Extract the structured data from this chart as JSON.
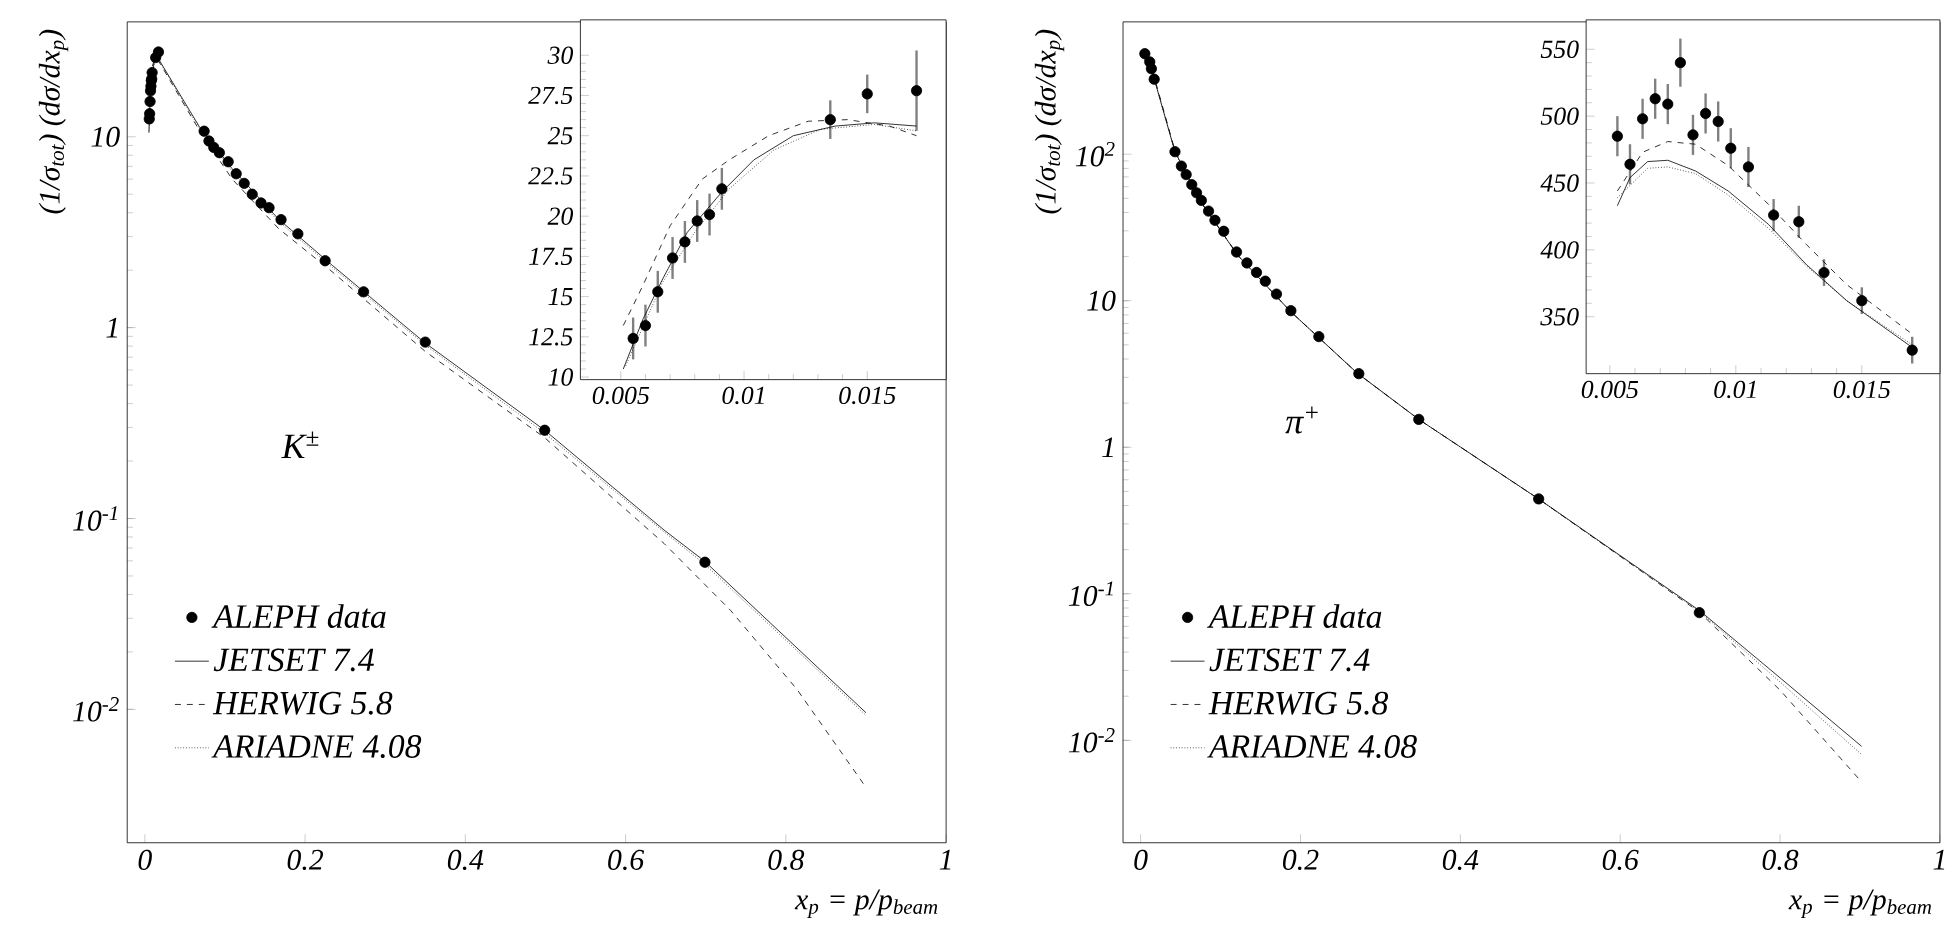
{
  "chart_data": [
    {
      "type": "line",
      "log": true,
      "legend": "bottom left",
      "xlabel": "x$_{p}$ = p/p$_{beam}$",
      "ylabel": "(1/σ$_{tot}$) (dσ/dx$_{p}$)",
      "annotations": [
        "K$^{±}$"
      ],
      "xlim": [
        -0.022,
        1.0
      ],
      "ylim": [
        0.002,
        40
      ],
      "xticks": [
        0,
        0.2,
        0.4,
        0.6,
        0.8,
        1
      ],
      "yticks": [
        {
          "value": 0.01,
          "label": "10$^{-2}$"
        },
        {
          "value": 0.1,
          "label": "10$^{-1}$"
        },
        1,
        10
      ],
      "series": [
        {
          "name": "ALEPH data",
          "type": "scatter",
          "marker": "circle",
          "color": "#000000",
          "x": [
            0.0055,
            0.006,
            0.0065,
            0.0071,
            0.0076,
            0.0081,
            0.0086,
            0.0091,
            0.0135,
            0.015,
            0.017,
            0.074,
            0.08,
            0.086,
            0.093,
            0.104,
            0.114,
            0.124,
            0.134,
            0.145,
            0.155,
            0.17,
            0.191,
            0.225,
            0.273,
            0.35,
            0.499,
            0.699
          ],
          "values": [
            12.4,
            13.2,
            15.3,
            17.4,
            18.4,
            19.7,
            20.1,
            21.7,
            26.0,
            null,
            27.8,
            10.7,
            9.5,
            8.8,
            8.25,
            7.4,
            6.4,
            5.7,
            5.0,
            4.5,
            4.25,
            3.68,
            3.1,
            2.24,
            1.54,
            0.84,
            0.29,
            0.059
          ]
        },
        {
          "name": "JETSET 7.4",
          "line_style": "solid",
          "color": "#000000",
          "x": [
            0.0051,
            0.0067,
            0.0091,
            0.012,
            0.017,
            0.068,
            0.109,
            0.167,
            0.234,
            0.35,
            0.499,
            0.648,
            0.698,
            0.9
          ],
          "values": [
            10.5,
            16.1,
            21.5,
            25.0,
            25.6,
            11.3,
            6.8,
            3.7,
            2.12,
            0.83,
            0.29,
            0.087,
            0.06,
            0.0096
          ]
        },
        {
          "name": "HERWIG 5.8",
          "line_style": "dashed",
          "color": "#000000",
          "x": [
            0.0051,
            0.007,
            0.0094,
            0.0126,
            0.017,
            0.068,
            0.109,
            0.167,
            0.234,
            0.35,
            0.499,
            0.648,
            0.731,
            0.814,
            0.9
          ],
          "values": [
            13.2,
            19.4,
            23.5,
            25.9,
            25.0,
            10.8,
            6.0,
            3.3,
            1.96,
            0.75,
            0.265,
            0.074,
            0.033,
            0.0127,
            0.0039
          ]
        },
        {
          "name": "ARIADNE 4.08",
          "line_style": "dotted",
          "color": "#000000",
          "x": [
            0.0052,
            0.0067,
            0.0094,
            0.0131,
            0.017,
            0.068,
            0.109,
            0.167,
            0.234,
            0.35,
            0.499,
            0.648,
            0.698,
            0.9
          ],
          "values": [
            10.7,
            15.9,
            21.7,
            25.4,
            25.3,
            11.1,
            6.6,
            3.6,
            2.07,
            0.81,
            0.28,
            0.085,
            0.058,
            0.0093
          ]
        }
      ]
    },
    {
      "type": "line",
      "xlim": [
        0.00336,
        0.0182
      ],
      "ylim": [
        9.84,
        32.2
      ],
      "xticks": [
        0.005,
        0.01,
        0.015
      ],
      "yticks": [
        10,
        12.5,
        15,
        17.5,
        20,
        22.5,
        25,
        27.5,
        30
      ],
      "series": [
        {
          "type": "scatter",
          "marker": "circle",
          "color": "#000000",
          "x": [
            0.0055,
            0.006,
            0.0065,
            0.0071,
            0.0076,
            0.0081,
            0.0086,
            0.0091,
            0.0135,
            0.015,
            0.017
          ],
          "values": [
            12.4,
            13.2,
            15.3,
            17.4,
            18.4,
            19.7,
            20.1,
            21.7,
            26.0,
            27.6,
            27.8
          ],
          "errors": [
            1.3,
            1.3,
            1.3,
            1.3,
            1.3,
            1.3,
            1.3,
            1.3,
            1.2,
            1.2,
            2.5
          ]
        },
        {
          "line_style": "solid",
          "color": "#000000",
          "x": [
            0.0051,
            0.0059,
            0.0067,
            0.0077,
            0.0091,
            0.0104,
            0.012,
            0.0137,
            0.0153,
            0.017
          ],
          "values": [
            10.5,
            13.6,
            16.1,
            19.0,
            21.5,
            23.5,
            25.0,
            25.6,
            25.8,
            25.6
          ]
        },
        {
          "line_style": "dashed",
          "color": "#000000",
          "x": [
            0.0051,
            0.0059,
            0.007,
            0.0083,
            0.0094,
            0.011,
            0.0126,
            0.0142,
            0.0159,
            0.017
          ],
          "values": [
            13.2,
            15.7,
            19.4,
            22.3,
            23.5,
            25.0,
            25.9,
            26.0,
            25.6,
            25.0
          ]
        },
        {
          "line_style": "dotted",
          "color": "#000000",
          "x": [
            0.0052,
            0.0067,
            0.008,
            0.0094,
            0.0112,
            0.0131,
            0.0153,
            0.017
          ],
          "values": [
            10.7,
            15.9,
            19.0,
            21.7,
            24.1,
            25.4,
            25.7,
            25.3
          ]
        }
      ]
    },
    {
      "type": "line",
      "log": true,
      "legend": "bottom left",
      "xlabel": "x$_{p}$ = p/p$_{beam}$",
      "ylabel": "(1/σ$_{tot}$) (dσ/dx$_{p}$)",
      "annotations": [
        "π$^{+}$"
      ],
      "xlim": [
        -0.022,
        1.0
      ],
      "ylim": [
        0.002,
        800
      ],
      "xticks": [
        0,
        0.2,
        0.4,
        0.6,
        0.8,
        1
      ],
      "yticks": [
        {
          "value": 0.01,
          "label": "10$^{-2}$"
        },
        {
          "value": 0.1,
          "label": "10$^{-1}$"
        },
        1,
        10,
        {
          "value": 100,
          "label": "10$^{2}$"
        }
      ],
      "series": [
        {
          "name": "ALEPH data",
          "type": "scatter",
          "marker": "circle",
          "color": "#000000",
          "x": [
            0.0053,
            0.0115,
            0.0135,
            0.017,
            0.043,
            0.051,
            0.057,
            0.064,
            0.07,
            0.076,
            0.085,
            0.093,
            0.104,
            0.12,
            0.133,
            0.145,
            0.156,
            0.17,
            0.188,
            0.223,
            0.273,
            0.348,
            0.498,
            0.699
          ],
          "values": [
            485,
            426,
            383,
            325,
            104,
            83,
            72.6,
            62.0,
            54.5,
            48.4,
            40.9,
            35.4,
            29.8,
            21.5,
            18.1,
            15.6,
            13.6,
            11.1,
            8.55,
            5.69,
            3.18,
            1.55,
            0.444,
            0.0744
          ]
        },
        {
          "name": "JETSET 7.4",
          "line_style": "solid",
          "color": "#000000",
          "x": [
            0.0053,
            0.0073,
            0.0113,
            0.017,
            0.043,
            0.076,
            0.122,
            0.188,
            0.271,
            0.348,
            0.498,
            0.699,
            0.8,
            0.902
          ],
          "values": [
            433,
            467,
            419,
            327,
            104,
            46.6,
            20.3,
            8.4,
            3.21,
            1.55,
            0.444,
            0.077,
            0.0267,
            0.0091
          ]
        },
        {
          "name": "HERWIG 5.8",
          "line_style": "dashed",
          "color": "#000000",
          "x": [
            0.0053,
            0.0073,
            0.0113,
            0.017,
            0.043,
            0.076,
            0.122,
            0.188,
            0.271,
            0.348,
            0.498,
            0.699,
            0.8,
            0.902
          ],
          "values": [
            444,
            481,
            434,
            337,
            106,
            47,
            20.3,
            8.4,
            3.21,
            1.55,
            0.444,
            0.075,
            0.022,
            0.0052
          ]
        },
        {
          "name": "ARIADNE 4.08",
          "line_style": "dotted",
          "color": "#000000",
          "x": [
            0.0053,
            0.0073,
            0.0113,
            0.017,
            0.043,
            0.076,
            0.122,
            0.188,
            0.271,
            0.348,
            0.498,
            0.699,
            0.8,
            0.902
          ],
          "values": [
            439,
            462,
            416,
            329,
            103,
            46.4,
            20.2,
            8.4,
            3.2,
            1.55,
            0.442,
            0.076,
            0.025,
            0.008
          ]
        }
      ]
    },
    {
      "type": "line",
      "xlim": [
        0.00406,
        0.0181
      ],
      "ylim": [
        307.4,
        572
      ],
      "xticks": [
        0.005,
        0.01,
        0.015
      ],
      "yticks": [
        350,
        400,
        450,
        500,
        550
      ],
      "series": [
        {
          "type": "scatter",
          "marker": "circle",
          "color": "#000000",
          "x": [
            0.0053,
            0.0058,
            0.0063,
            0.0068,
            0.0073,
            0.0078,
            0.0083,
            0.0088,
            0.0093,
            0.0098,
            0.0105,
            0.0115,
            0.0125,
            0.0135,
            0.015,
            0.017
          ],
          "values": [
            485,
            464,
            498,
            513,
            509,
            540,
            486,
            502,
            496,
            476,
            462,
            426,
            421,
            383,
            362,
            325
          ],
          "errors": [
            15,
            15,
            15,
            15,
            15,
            18,
            15,
            15,
            15,
            15,
            15,
            12,
            12,
            10,
            10,
            10
          ]
        },
        {
          "line_style": "solid",
          "color": "#000000",
          "x": [
            0.0053,
            0.0058,
            0.0065,
            0.0073,
            0.0084,
            0.0097,
            0.0113,
            0.0128,
            0.0144,
            0.017
          ],
          "values": [
            433,
            454,
            466,
            467,
            459,
            444,
            419,
            389,
            362,
            327
          ]
        },
        {
          "line_style": "dashed",
          "color": "#000000",
          "x": [
            0.0053,
            0.0063,
            0.0073,
            0.0084,
            0.0097,
            0.0113,
            0.0128,
            0.0144,
            0.017
          ],
          "values": [
            444,
            473,
            481,
            479,
            463,
            434,
            404,
            374,
            337
          ]
        },
        {
          "line_style": "dotted",
          "color": "#000000",
          "x": [
            0.0053,
            0.0065,
            0.0073,
            0.0084,
            0.0097,
            0.0113,
            0.0128,
            0.0144,
            0.017
          ],
          "values": [
            439,
            461,
            462,
            457,
            441,
            416,
            388,
            362,
            329
          ]
        }
      ]
    }
  ]
}
